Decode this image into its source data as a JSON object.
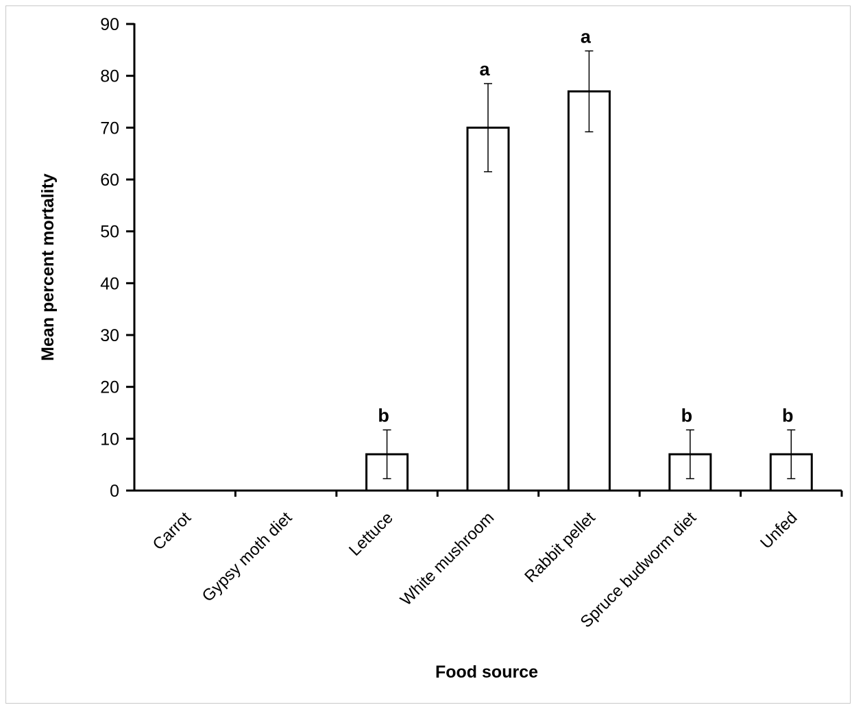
{
  "chart_data": {
    "type": "bar",
    "title": "",
    "xlabel": "Food source",
    "ylabel": "Mean percent mortality",
    "ylim": [
      0,
      90
    ],
    "yticks": [
      0,
      10,
      20,
      30,
      40,
      50,
      60,
      70,
      80,
      90
    ],
    "ytick_labels": [
      "0",
      "10",
      "20",
      "30",
      "40",
      "50",
      "60",
      "70",
      "80",
      "90"
    ],
    "grid": false,
    "legend": "none",
    "categories": [
      "Carrot",
      "Gypsy moth diet",
      "Lettuce",
      "White mushroom",
      "Rabbit pellet",
      "Spruce budworm diet",
      "Unfed"
    ],
    "values": [
      0,
      0,
      7,
      70,
      77,
      7,
      7
    ],
    "error": [
      0,
      0,
      4.7,
      8.5,
      7.8,
      4.7,
      4.7
    ],
    "significance_letters": [
      "",
      "",
      "b",
      "a",
      "a",
      "b",
      "b"
    ],
    "bar_fill": "#ffffff",
    "bar_stroke": "#000000"
  }
}
